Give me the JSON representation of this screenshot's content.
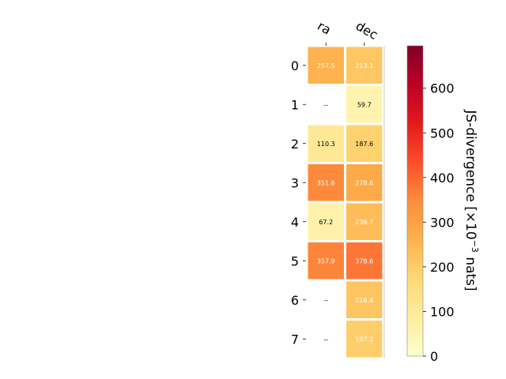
{
  "chart_data": {
    "type": "heatmap",
    "columns": [
      "ra",
      "dec"
    ],
    "rows": [
      "0",
      "1",
      "2",
      "3",
      "4",
      "5",
      "6",
      "7"
    ],
    "values": [
      [
        257.5,
        213.1
      ],
      [
        null,
        59.7
      ],
      [
        110.3,
        187.6
      ],
      [
        351.6,
        278.6
      ],
      [
        67.2,
        236.7
      ],
      [
        357.9,
        378.6
      ],
      [
        null,
        216.4
      ],
      [
        null,
        197.2
      ]
    ],
    "cell_labels": [
      [
        "257.5",
        "213.1"
      ],
      [
        "--",
        "59.7"
      ],
      [
        "110.3",
        "187.6"
      ],
      [
        "351.6",
        "278.6"
      ],
      [
        "67.2",
        "236.7"
      ],
      [
        "357.9",
        "378.6"
      ],
      [
        "--",
        "216.4"
      ],
      [
        "--",
        "197.2"
      ]
    ],
    "missing_label": "--",
    "colorbar": {
      "label_main": "JS-divergence [×10",
      "label_exp": "−3",
      "label_end": " nats]",
      "ticks": [
        "0",
        "100",
        "200",
        "300",
        "400",
        "500",
        "600"
      ],
      "tick_values": [
        0,
        100,
        200,
        300,
        400,
        500,
        600
      ],
      "range": [
        0,
        695
      ],
      "colormap": "YlOrRd"
    },
    "grid": false
  }
}
